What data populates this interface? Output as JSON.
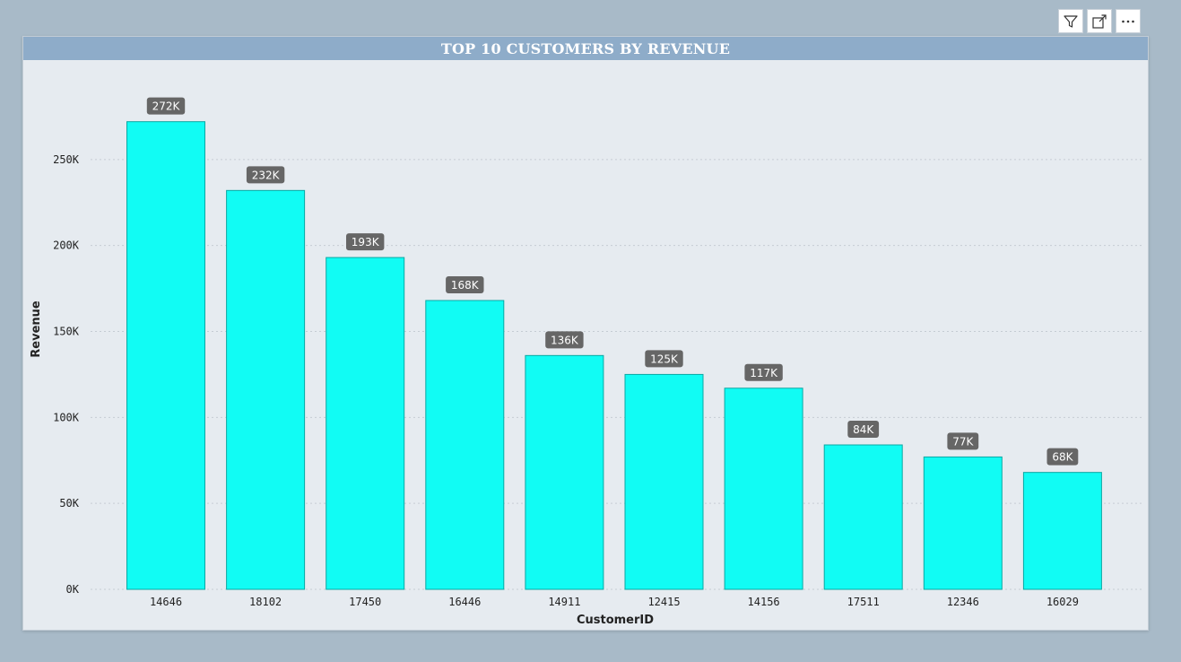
{
  "toolbar": {
    "icons": [
      "filter-icon",
      "focus-mode-icon",
      "more-options-icon"
    ]
  },
  "colors": {
    "bar": "#11fcf4",
    "bar_border": "#0aa8a3",
    "label_bg": "#666666",
    "title_bar": "#8eacc9",
    "background": "#a8bac8"
  },
  "chart_data": {
    "type": "bar",
    "title": "TOP 10 CUSTOMERS BY REVENUE",
    "xlabel": "CustomerID",
    "ylabel": "Revenue",
    "categories": [
      "14646",
      "18102",
      "17450",
      "16446",
      "14911",
      "12415",
      "14156",
      "17511",
      "12346",
      "16029"
    ],
    "values": [
      272000,
      232000,
      193000,
      168000,
      136000,
      125000,
      117000,
      84000,
      77000,
      68000
    ],
    "data_labels": [
      "272K",
      "232K",
      "193K",
      "168K",
      "136K",
      "125K",
      "117K",
      "84K",
      "77K",
      "68K"
    ],
    "ylim": [
      0,
      300000
    ],
    "yticks": [
      0,
      50000,
      100000,
      150000,
      200000,
      250000
    ],
    "ytick_labels": [
      "0K",
      "50K",
      "100K",
      "150K",
      "200K",
      "250K"
    ],
    "grid": true,
    "legend": "none"
  }
}
